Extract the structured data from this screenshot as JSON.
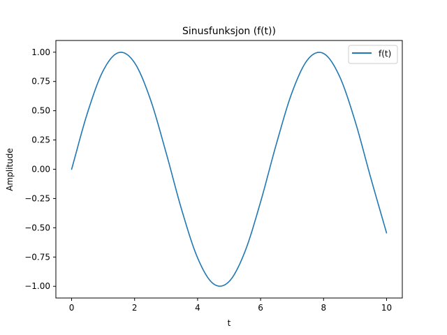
{
  "chart_data": {
    "type": "line",
    "title": "Sinusfunksjon (f(t))",
    "xlabel": "t",
    "ylabel": "Amplitude",
    "xlim": [
      -0.5,
      10.5
    ],
    "ylim": [
      -1.1,
      1.1
    ],
    "x_ticks": [
      0,
      2,
      4,
      6,
      8,
      10
    ],
    "x_tick_labels": [
      "0",
      "2",
      "4",
      "6",
      "8",
      "10"
    ],
    "y_ticks": [
      -1.0,
      -0.75,
      -0.5,
      -0.25,
      0.0,
      0.25,
      0.5,
      0.75,
      1.0
    ],
    "y_tick_labels": [
      "−1.00",
      "−0.75",
      "−0.50",
      "−0.25",
      "0.00",
      "0.25",
      "0.50",
      "0.75",
      "1.00"
    ],
    "grid": false,
    "legend_position": "top-right",
    "series": [
      {
        "name": "f(t)",
        "color": "#1f77b4",
        "x": [
          0,
          0.5,
          1,
          1.5,
          2,
          2.5,
          3,
          3.5,
          4,
          4.5,
          5,
          5.5,
          6,
          6.5,
          7,
          7.5,
          8,
          8.5,
          9,
          9.5,
          10
        ],
        "y": [
          0.0,
          0.479,
          0.841,
          0.997,
          0.909,
          0.598,
          0.141,
          -0.351,
          -0.757,
          -0.978,
          -0.959,
          -0.706,
          -0.279,
          0.215,
          0.657,
          0.938,
          0.989,
          0.798,
          0.412,
          -0.075,
          -0.544
        ]
      }
    ]
  }
}
